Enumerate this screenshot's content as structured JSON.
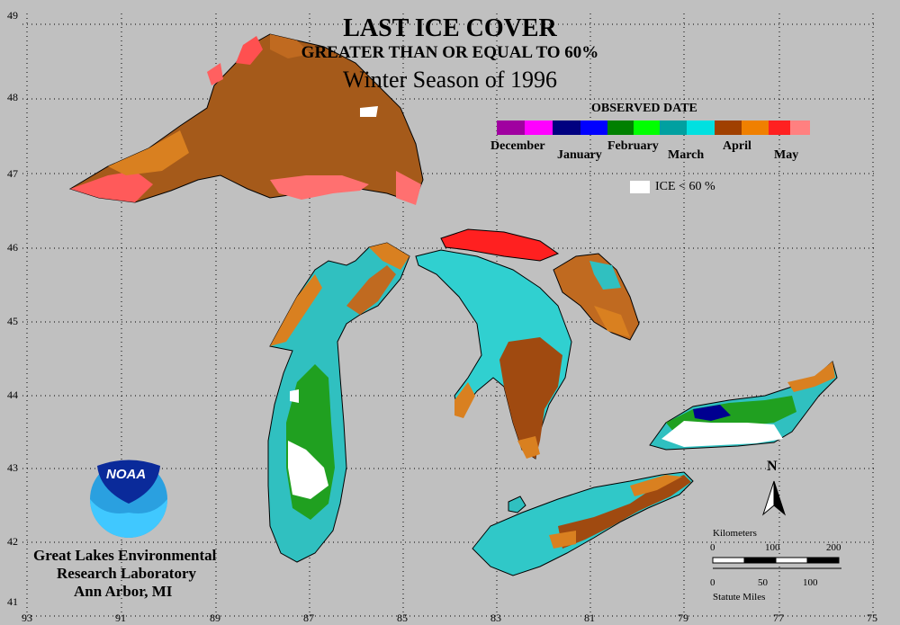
{
  "title": {
    "line1": "LAST ICE COVER",
    "line2": "GREATER THAN OR EQUAL TO 60%",
    "line3": "Winter Season of 1996"
  },
  "legend": {
    "heading": "OBSERVED DATE",
    "months": [
      {
        "label": "December",
        "colors": [
          "#a000a0",
          "#ff00ff"
        ]
      },
      {
        "label": "January",
        "colors": [
          "#000080",
          "#0000ff"
        ]
      },
      {
        "label": "February",
        "colors": [
          "#008000",
          "#00ff00"
        ]
      },
      {
        "label": "March",
        "colors": [
          "#00a0a0",
          "#00e0e0"
        ]
      },
      {
        "label": "April",
        "colors": [
          "#a04000",
          "#f08000"
        ]
      },
      {
        "label": "May",
        "colors": [
          "#ff2020",
          "#ff8080"
        ]
      }
    ],
    "ice_lt_60": {
      "label": "ICE < 60 %",
      "color": "#ffffff"
    }
  },
  "axes": {
    "latitudes": [
      "49",
      "48",
      "47",
      "46",
      "45",
      "44",
      "43",
      "42",
      "41"
    ],
    "longitudes": [
      "93",
      "91",
      "89",
      "87",
      "85",
      "83",
      "81",
      "79",
      "77",
      "75"
    ]
  },
  "org": {
    "logo_text": "NOAA",
    "line1": "Great Lakes Environmental",
    "line2": "Research Laboratory",
    "line3": "Ann Arbor, MI"
  },
  "compass": {
    "label": "N"
  },
  "scale": {
    "km_label": "Kilometers",
    "km_ticks": [
      "0",
      "100",
      "200"
    ],
    "mi_ticks": [
      "0",
      "50",
      "100"
    ],
    "mi_label": "Statute Miles"
  },
  "colors": {
    "background": "#c0c0c0",
    "land_outline": "#000000",
    "grid": "#000000"
  }
}
